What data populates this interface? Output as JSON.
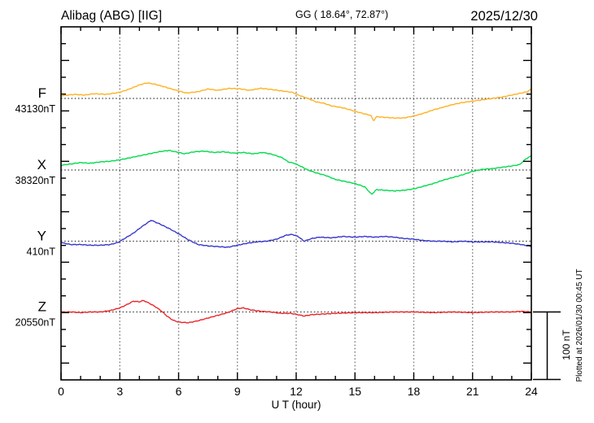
{
  "header": {
    "station": "Alibag (ABG)  [IIG]",
    "coords": "GG ( 18.64°,  72.87°)",
    "date": "2025/12/30"
  },
  "scale_bar": {
    "label": "100 nT",
    "nT": 100
  },
  "plotted_at": "Plotted at 2026/01/30 00:45 UT",
  "chart_data": {
    "type": "line",
    "title": "Alibag (ABG) [IIG] magnetogram 2025/12/30",
    "xlabel": "U T (hour)",
    "x_range": [
      0,
      24
    ],
    "x_tick_labels": [
      "0",
      "3",
      "6",
      "9",
      "12",
      "15",
      "18",
      "21",
      "24"
    ],
    "x_tick_hours": [
      0,
      3,
      6,
      9,
      12,
      15,
      18,
      21,
      24
    ],
    "gridline_hours": [
      3,
      6,
      9,
      12,
      15,
      18,
      21
    ],
    "grid": "dotted-3hour-vertical-plus-baselines",
    "legend_position": "left-margin-labels",
    "y_unit": "nT",
    "series": [
      {
        "component": "F",
        "base_label": "43130nT",
        "base_nT": 43130,
        "color": "#ffb020",
        "points": [
          [
            0,
            4
          ],
          [
            0.7,
            6
          ],
          [
            1.2,
            5
          ],
          [
            1.7,
            7
          ],
          [
            2.3,
            6
          ],
          [
            3,
            9
          ],
          [
            3.5,
            14
          ],
          [
            4,
            20
          ],
          [
            4.4,
            23
          ],
          [
            4.8,
            21
          ],
          [
            5.3,
            17
          ],
          [
            6,
            11
          ],
          [
            6.4,
            8
          ],
          [
            7,
            10
          ],
          [
            7.5,
            14
          ],
          [
            8,
            12
          ],
          [
            8.6,
            15
          ],
          [
            9.2,
            14
          ],
          [
            9.6,
            12
          ],
          [
            10.2,
            15
          ],
          [
            10.8,
            13
          ],
          [
            11.3,
            11
          ],
          [
            11.8,
            9
          ],
          [
            12.2,
            4
          ],
          [
            12.6,
            0
          ],
          [
            13,
            -5
          ],
          [
            13.4,
            -7
          ],
          [
            13.8,
            -11
          ],
          [
            14.4,
            -14
          ],
          [
            15,
            -19
          ],
          [
            15.5,
            -23
          ],
          [
            15.8,
            -25
          ],
          [
            15.95,
            -33
          ],
          [
            16.1,
            -27
          ],
          [
            16.5,
            -28
          ],
          [
            17,
            -29
          ],
          [
            17.5,
            -29
          ],
          [
            18,
            -26
          ],
          [
            18.5,
            -22
          ],
          [
            19,
            -17
          ],
          [
            19.5,
            -13
          ],
          [
            20,
            -9
          ],
          [
            20.5,
            -6
          ],
          [
            21,
            -4
          ],
          [
            21.5,
            -2
          ],
          [
            22,
            0
          ],
          [
            22.5,
            2
          ],
          [
            23,
            5
          ],
          [
            23.5,
            8
          ],
          [
            23.8,
            10
          ],
          [
            24,
            14
          ]
        ]
      },
      {
        "component": "X",
        "base_label": "38320nT",
        "base_nT": 38320,
        "color": "#00d94a",
        "points": [
          [
            0,
            7
          ],
          [
            0.5,
            9
          ],
          [
            1,
            11
          ],
          [
            1.5,
            10
          ],
          [
            2,
            12
          ],
          [
            2.5,
            13
          ],
          [
            3,
            15
          ],
          [
            3.5,
            18
          ],
          [
            4,
            21
          ],
          [
            4.5,
            24
          ],
          [
            5,
            27
          ],
          [
            5.5,
            29
          ],
          [
            6,
            26
          ],
          [
            6.3,
            24
          ],
          [
            6.8,
            27
          ],
          [
            7.3,
            28
          ],
          [
            7.8,
            26
          ],
          [
            8.3,
            27
          ],
          [
            8.8,
            25
          ],
          [
            9.3,
            26
          ],
          [
            9.8,
            24
          ],
          [
            10.3,
            26
          ],
          [
            10.8,
            23
          ],
          [
            11.3,
            18
          ],
          [
            11.6,
            12
          ],
          [
            11.9,
            10
          ],
          [
            12.2,
            6
          ],
          [
            12.6,
            0
          ],
          [
            13,
            -4
          ],
          [
            13.5,
            -8
          ],
          [
            14,
            -14
          ],
          [
            14.5,
            -17
          ],
          [
            15,
            -20
          ],
          [
            15.5,
            -25
          ],
          [
            15.85,
            -36
          ],
          [
            16.1,
            -29
          ],
          [
            16.5,
            -30
          ],
          [
            17,
            -31
          ],
          [
            17.5,
            -30
          ],
          [
            18,
            -28
          ],
          [
            18.5,
            -24
          ],
          [
            19,
            -20
          ],
          [
            19.5,
            -15
          ],
          [
            20,
            -11
          ],
          [
            20.5,
            -7
          ],
          [
            21,
            -2
          ],
          [
            21.5,
            1
          ],
          [
            22,
            2
          ],
          [
            22.5,
            4
          ],
          [
            23,
            6
          ],
          [
            23.4,
            8
          ],
          [
            23.7,
            16
          ],
          [
            24,
            21
          ]
        ]
      },
      {
        "component": "Y",
        "base_label": "410nT",
        "base_nT": 410,
        "color": "#3333cc",
        "points": [
          [
            0,
            -2
          ],
          [
            0.5,
            -5
          ],
          [
            1,
            -5
          ],
          [
            1.5,
            -6
          ],
          [
            2,
            -6
          ],
          [
            2.5,
            -5
          ],
          [
            2.9,
            -2
          ],
          [
            3.3,
            5
          ],
          [
            3.7,
            12
          ],
          [
            4.1,
            21
          ],
          [
            4.6,
            31
          ],
          [
            5,
            26
          ],
          [
            5.5,
            19
          ],
          [
            6,
            11
          ],
          [
            6.5,
            2
          ],
          [
            7,
            -5
          ],
          [
            7.5,
            -7
          ],
          [
            8,
            -8
          ],
          [
            8.5,
            -9
          ],
          [
            9,
            -6
          ],
          [
            9.5,
            -3
          ],
          [
            10,
            -1
          ],
          [
            10.5,
            0
          ],
          [
            11,
            3
          ],
          [
            11.5,
            9
          ],
          [
            11.8,
            10
          ],
          [
            12.1,
            7
          ],
          [
            12.4,
            0
          ],
          [
            12.8,
            4
          ],
          [
            13.2,
            6
          ],
          [
            13.8,
            5
          ],
          [
            14.4,
            7
          ],
          [
            15,
            6
          ],
          [
            15.5,
            7
          ],
          [
            16,
            6
          ],
          [
            16.5,
            7
          ],
          [
            17,
            6
          ],
          [
            17.5,
            4
          ],
          [
            18,
            3
          ],
          [
            18.5,
            1
          ],
          [
            19,
            0
          ],
          [
            19.5,
            0
          ],
          [
            20,
            -1
          ],
          [
            20.5,
            0
          ],
          [
            21,
            -1
          ],
          [
            21.5,
            -1
          ],
          [
            22,
            -1
          ],
          [
            22.5,
            -2
          ],
          [
            23,
            -3
          ],
          [
            23.5,
            -5
          ],
          [
            24,
            -8
          ]
        ]
      },
      {
        "component": "Z",
        "base_label": "20550nT",
        "base_nT": 20550,
        "color": "#ea2222",
        "points": [
          [
            0,
            0
          ],
          [
            0.5,
            0
          ],
          [
            1,
            -1
          ],
          [
            1.5,
            0
          ],
          [
            2,
            0
          ],
          [
            2.5,
            2
          ],
          [
            3,
            6
          ],
          [
            3.3,
            10
          ],
          [
            3.7,
            16
          ],
          [
            4,
            15
          ],
          [
            4.2,
            17
          ],
          [
            4.5,
            13
          ],
          [
            4.8,
            8
          ],
          [
            5.1,
            2
          ],
          [
            5.4,
            -6
          ],
          [
            5.7,
            -12
          ],
          [
            6,
            -15
          ],
          [
            6.5,
            -16
          ],
          [
            7,
            -13
          ],
          [
            7.5,
            -9
          ],
          [
            8,
            -5
          ],
          [
            8.5,
            -1
          ],
          [
            9,
            5
          ],
          [
            9.3,
            6
          ],
          [
            9.7,
            3
          ],
          [
            10.2,
            1
          ],
          [
            10.7,
            0
          ],
          [
            11.2,
            -2
          ],
          [
            11.7,
            -2
          ],
          [
            12.1,
            -4
          ],
          [
            12.4,
            -6
          ],
          [
            12.8,
            -4
          ],
          [
            13.4,
            -3
          ],
          [
            14,
            -2
          ],
          [
            15,
            -1
          ],
          [
            16,
            -1
          ],
          [
            17,
            0
          ],
          [
            18,
            0
          ],
          [
            19,
            -1
          ],
          [
            20,
            0
          ],
          [
            21,
            -1
          ],
          [
            22,
            0
          ],
          [
            23,
            0
          ],
          [
            23.5,
            1
          ],
          [
            24,
            0
          ]
        ]
      }
    ]
  }
}
